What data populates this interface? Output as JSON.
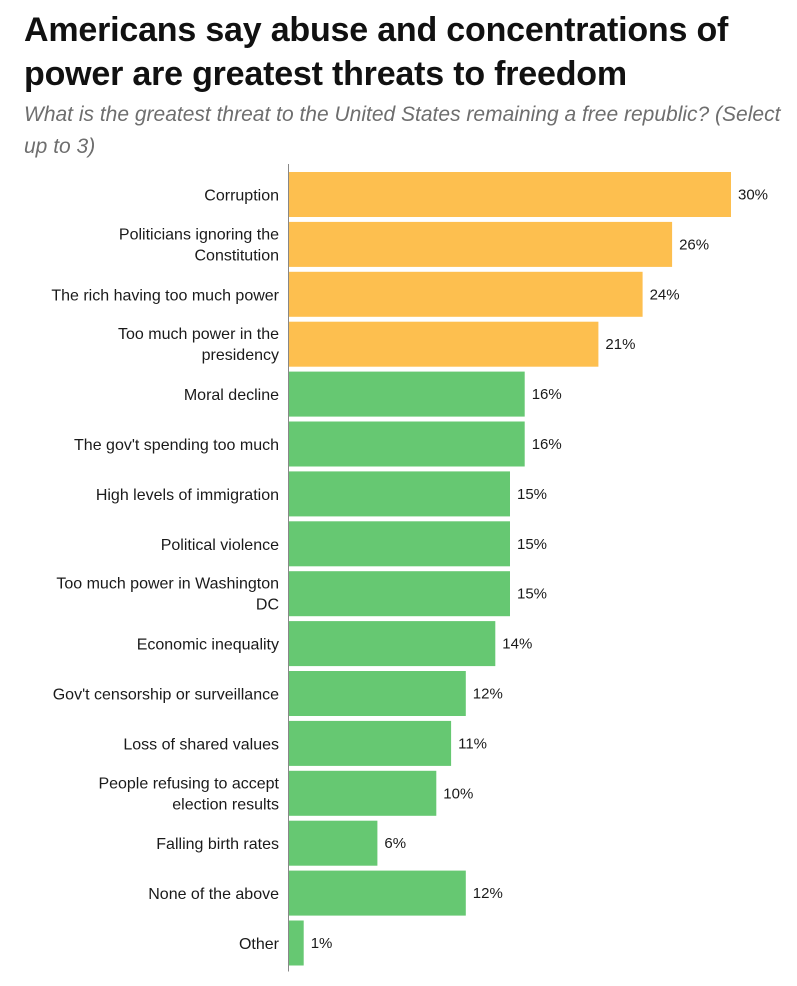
{
  "title": "Americans say abuse and concentrations of power are greatest threats to freedom",
  "subtitle": "What is the greatest threat to the United States remaining a free republic? (Select up to 3)",
  "colors": {
    "highlight": "#FDBF4F",
    "default": "#66C872",
    "axis": "#888888"
  },
  "chart_data": {
    "type": "bar",
    "orientation": "horizontal",
    "categories": [
      [
        "Corruption"
      ],
      [
        "Politicians ignoring the",
        "Constitution"
      ],
      [
        "The rich having too much power"
      ],
      [
        "Too much power in the",
        "presidency"
      ],
      [
        "Moral decline"
      ],
      [
        "The gov't spending too much"
      ],
      [
        "High levels of immigration"
      ],
      [
        "Political violence"
      ],
      [
        "Too much power in Washington",
        "DC"
      ],
      [
        "Economic inequality"
      ],
      [
        "Gov't censorship or surveillance"
      ],
      [
        "Loss of shared values"
      ],
      [
        "People refusing to accept",
        "election results"
      ],
      [
        "Falling birth rates"
      ],
      [
        "None of the above"
      ],
      [
        "Other"
      ]
    ],
    "values": [
      30,
      26,
      24,
      21,
      16,
      16,
      15,
      15,
      15,
      14,
      12,
      11,
      10,
      6,
      12,
      1
    ],
    "value_labels": [
      "30%",
      "26%",
      "24%",
      "21%",
      "16%",
      "16%",
      "15%",
      "15%",
      "15%",
      "14%",
      "12%",
      "11%",
      "10%",
      "6%",
      "12%",
      "1%"
    ],
    "highlighted": [
      true,
      true,
      true,
      true,
      false,
      false,
      false,
      false,
      false,
      false,
      false,
      false,
      false,
      false,
      false,
      false
    ],
    "xlim": [
      0,
      30
    ],
    "grid": false,
    "legend": "none"
  }
}
